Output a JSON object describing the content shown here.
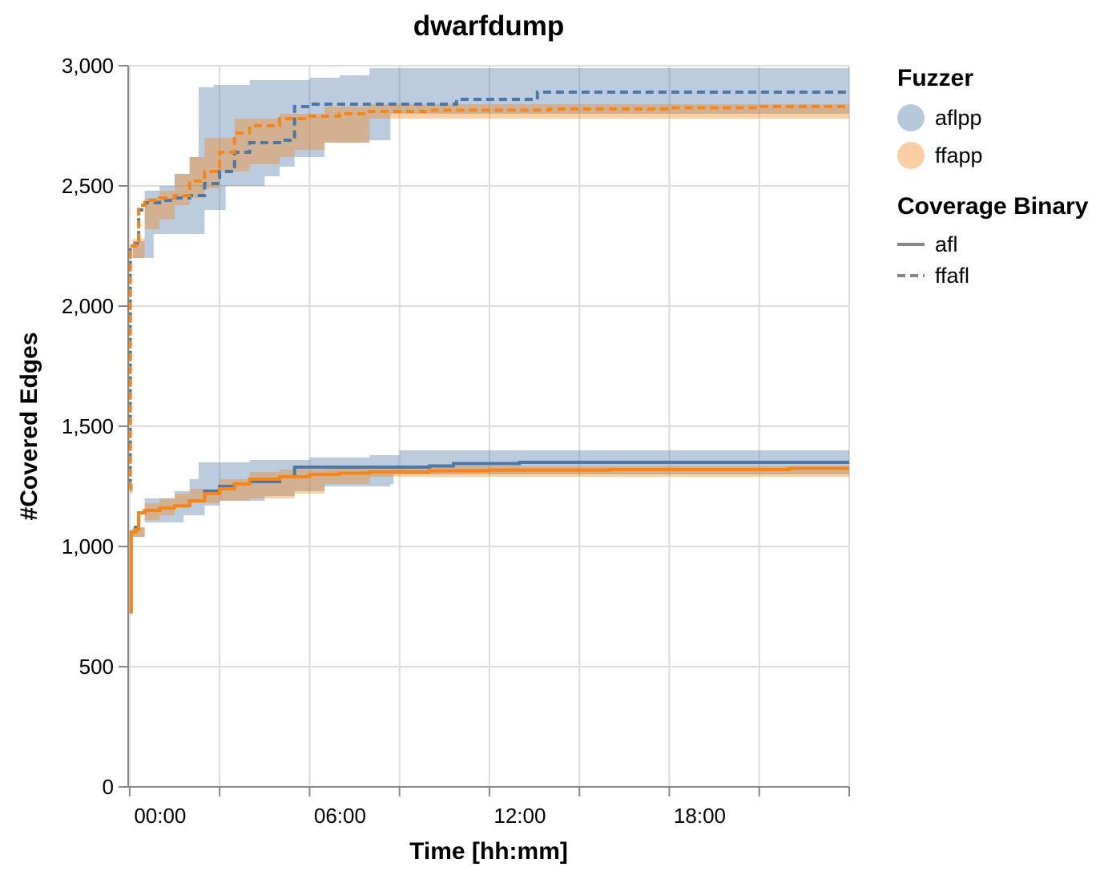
{
  "chart_data": {
    "type": "line",
    "title": "dwarfdump",
    "xlabel": "Time [hh:mm]",
    "ylabel": "#Covered Edges",
    "x_unit": "hours",
    "xlim": [
      -0.05,
      24
    ],
    "ylim": [
      0,
      3000
    ],
    "x_ticks": [
      {
        "value": 0,
        "label": "00:00"
      },
      {
        "value": 6,
        "label": "06:00"
      },
      {
        "value": 12,
        "label": "12:00"
      },
      {
        "value": 18,
        "label": "18:00"
      }
    ],
    "x_grid": [
      0,
      3,
      6,
      9,
      12,
      15,
      18,
      21,
      24
    ],
    "y_ticks": [
      {
        "value": 0,
        "label": "0"
      },
      {
        "value": 500,
        "label": "500"
      },
      {
        "value": 1000,
        "label": "1,000"
      },
      {
        "value": 1500,
        "label": "1,500"
      },
      {
        "value": 2000,
        "label": "2,000"
      },
      {
        "value": 2500,
        "label": "2,500"
      },
      {
        "value": 3000,
        "label": "3,000"
      }
    ],
    "grid": true,
    "legend_position": "right",
    "legend": {
      "fuzzer_title": "Fuzzer",
      "fuzzer_items": [
        {
          "label": "aflpp",
          "color": "#4c78a8"
        },
        {
          "label": "ffapp",
          "color": "#f58518"
        }
      ],
      "coverage_title": "Coverage Binary",
      "coverage_items": [
        {
          "label": "afl",
          "dash": "solid"
        },
        {
          "label": "ffafl",
          "dash": "dashed"
        }
      ]
    },
    "series": [
      {
        "fuzzer": "aflpp",
        "coverage": "ffafl",
        "color": "#4c78a8",
        "mean": [
          [
            0,
            1250
          ],
          [
            0.02,
            2250
          ],
          [
            0.2,
            2260
          ],
          [
            0.3,
            2400
          ],
          [
            0.5,
            2430
          ],
          [
            1,
            2440
          ],
          [
            1.5,
            2450
          ],
          [
            2,
            2460
          ],
          [
            2.5,
            2510
          ],
          [
            3,
            2560
          ],
          [
            3.5,
            2640
          ],
          [
            4,
            2680
          ],
          [
            5,
            2690
          ],
          [
            5.5,
            2830
          ],
          [
            6,
            2840
          ],
          [
            8,
            2840
          ],
          [
            10,
            2840
          ],
          [
            10.9,
            2860
          ],
          [
            13.5,
            2860
          ],
          [
            13.6,
            2890
          ],
          [
            16,
            2890
          ],
          [
            20,
            2890
          ],
          [
            24,
            2890
          ]
        ],
        "lower": [
          [
            0,
            1230
          ],
          [
            0.1,
            2200
          ],
          [
            0.8,
            2300
          ],
          [
            1.4,
            2300
          ],
          [
            1.8,
            2300
          ],
          [
            2.5,
            2400
          ],
          [
            3.2,
            2500
          ],
          [
            4.5,
            2540
          ],
          [
            5,
            2580
          ],
          [
            5.5,
            2620
          ],
          [
            6.5,
            2680
          ],
          [
            8,
            2690
          ],
          [
            8.6,
            2690
          ],
          [
            8.7,
            2800
          ],
          [
            24,
            2790
          ]
        ],
        "upper": [
          [
            0,
            1260
          ],
          [
            0.1,
            2270
          ],
          [
            0.5,
            2480
          ],
          [
            1,
            2500
          ],
          [
            1.5,
            2550
          ],
          [
            2,
            2620
          ],
          [
            2.3,
            2910
          ],
          [
            2.8,
            2920
          ],
          [
            4,
            2940
          ],
          [
            6,
            2950
          ],
          [
            7,
            2960
          ],
          [
            8,
            2990
          ],
          [
            24,
            2995
          ]
        ]
      },
      {
        "fuzzer": "ffapp",
        "coverage": "ffafl",
        "color": "#f58518",
        "mean": [
          [
            0,
            1240
          ],
          [
            0.02,
            2250
          ],
          [
            0.2,
            2270
          ],
          [
            0.3,
            2420
          ],
          [
            0.5,
            2440
          ],
          [
            1,
            2450
          ],
          [
            1.5,
            2460
          ],
          [
            2,
            2520
          ],
          [
            2.5,
            2560
          ],
          [
            3,
            2640
          ],
          [
            3.5,
            2720
          ],
          [
            4,
            2750
          ],
          [
            5,
            2780
          ],
          [
            6,
            2790
          ],
          [
            7,
            2800
          ],
          [
            8,
            2810
          ],
          [
            10,
            2815
          ],
          [
            12,
            2815
          ],
          [
            14,
            2820
          ],
          [
            18,
            2825
          ],
          [
            21,
            2830
          ],
          [
            24,
            2830
          ]
        ],
        "lower": [
          [
            0,
            1220
          ],
          [
            0.1,
            2200
          ],
          [
            0.5,
            2320
          ],
          [
            1,
            2360
          ],
          [
            1.5,
            2420
          ],
          [
            2,
            2450
          ],
          [
            2.5,
            2490
          ],
          [
            3,
            2560
          ],
          [
            4,
            2590
          ],
          [
            5,
            2620
          ],
          [
            5.5,
            2650
          ],
          [
            6.5,
            2680
          ],
          [
            8,
            2780
          ],
          [
            24,
            2780
          ]
        ],
        "upper": [
          [
            0,
            1260
          ],
          [
            0.1,
            2280
          ],
          [
            0.5,
            2450
          ],
          [
            1,
            2480
          ],
          [
            1.5,
            2550
          ],
          [
            2,
            2620
          ],
          [
            2.5,
            2700
          ],
          [
            3.5,
            2780
          ],
          [
            5,
            2800
          ],
          [
            6.5,
            2830
          ],
          [
            8,
            2840
          ],
          [
            24,
            2850
          ]
        ]
      },
      {
        "fuzzer": "aflpp",
        "coverage": "afl",
        "color": "#4c78a8",
        "mean": [
          [
            0,
            730
          ],
          [
            0.05,
            1060
          ],
          [
            0.2,
            1080
          ],
          [
            0.3,
            1140
          ],
          [
            0.5,
            1150
          ],
          [
            1,
            1160
          ],
          [
            1.5,
            1170
          ],
          [
            2,
            1190
          ],
          [
            2.5,
            1230
          ],
          [
            3,
            1250
          ],
          [
            3.5,
            1260
          ],
          [
            4,
            1270
          ],
          [
            5,
            1290
          ],
          [
            5.5,
            1330
          ],
          [
            6,
            1330
          ],
          [
            8,
            1330
          ],
          [
            10,
            1335
          ],
          [
            10.8,
            1345
          ],
          [
            13,
            1350
          ],
          [
            16,
            1350
          ],
          [
            20,
            1350
          ],
          [
            24,
            1350
          ]
        ],
        "lower": [
          [
            0,
            720
          ],
          [
            0.1,
            1040
          ],
          [
            0.5,
            1100
          ],
          [
            1.4,
            1100
          ],
          [
            1.8,
            1130
          ],
          [
            2.5,
            1170
          ],
          [
            3,
            1190
          ],
          [
            4.5,
            1210
          ],
          [
            5.5,
            1230
          ],
          [
            6.5,
            1250
          ],
          [
            8.7,
            1260
          ],
          [
            8.8,
            1300
          ],
          [
            24,
            1300
          ]
        ],
        "upper": [
          [
            0,
            740
          ],
          [
            0.1,
            1080
          ],
          [
            0.5,
            1200
          ],
          [
            1.5,
            1230
          ],
          [
            2,
            1280
          ],
          [
            2.3,
            1350
          ],
          [
            4,
            1360
          ],
          [
            6,
            1370
          ],
          [
            8,
            1380
          ],
          [
            9,
            1400
          ],
          [
            24,
            1400
          ]
        ]
      },
      {
        "fuzzer": "ffapp",
        "coverage": "afl",
        "color": "#f58518",
        "mean": [
          [
            0,
            730
          ],
          [
            0.05,
            1060
          ],
          [
            0.2,
            1070
          ],
          [
            0.3,
            1140
          ],
          [
            0.5,
            1150
          ],
          [
            1,
            1160
          ],
          [
            1.5,
            1170
          ],
          [
            2,
            1190
          ],
          [
            2.5,
            1220
          ],
          [
            3,
            1240
          ],
          [
            3.5,
            1260
          ],
          [
            4,
            1280
          ],
          [
            5,
            1290
          ],
          [
            6,
            1300
          ],
          [
            7,
            1305
          ],
          [
            8,
            1310
          ],
          [
            10,
            1315
          ],
          [
            12,
            1318
          ],
          [
            16,
            1320
          ],
          [
            20,
            1320
          ],
          [
            22,
            1325
          ],
          [
            24,
            1325
          ]
        ],
        "lower": [
          [
            0,
            720
          ],
          [
            0.1,
            1040
          ],
          [
            0.5,
            1110
          ],
          [
            1,
            1130
          ],
          [
            1.5,
            1160
          ],
          [
            2,
            1180
          ],
          [
            3,
            1190
          ],
          [
            4,
            1200
          ],
          [
            5.5,
            1220
          ],
          [
            6.5,
            1260
          ],
          [
            8,
            1290
          ],
          [
            24,
            1290
          ]
        ],
        "upper": [
          [
            0,
            740
          ],
          [
            0.1,
            1080
          ],
          [
            0.5,
            1180
          ],
          [
            1,
            1200
          ],
          [
            1.5,
            1220
          ],
          [
            2,
            1240
          ],
          [
            3,
            1280
          ],
          [
            4,
            1310
          ],
          [
            5,
            1320
          ],
          [
            6.5,
            1330
          ],
          [
            8,
            1335
          ],
          [
            24,
            1340
          ]
        ]
      }
    ]
  }
}
